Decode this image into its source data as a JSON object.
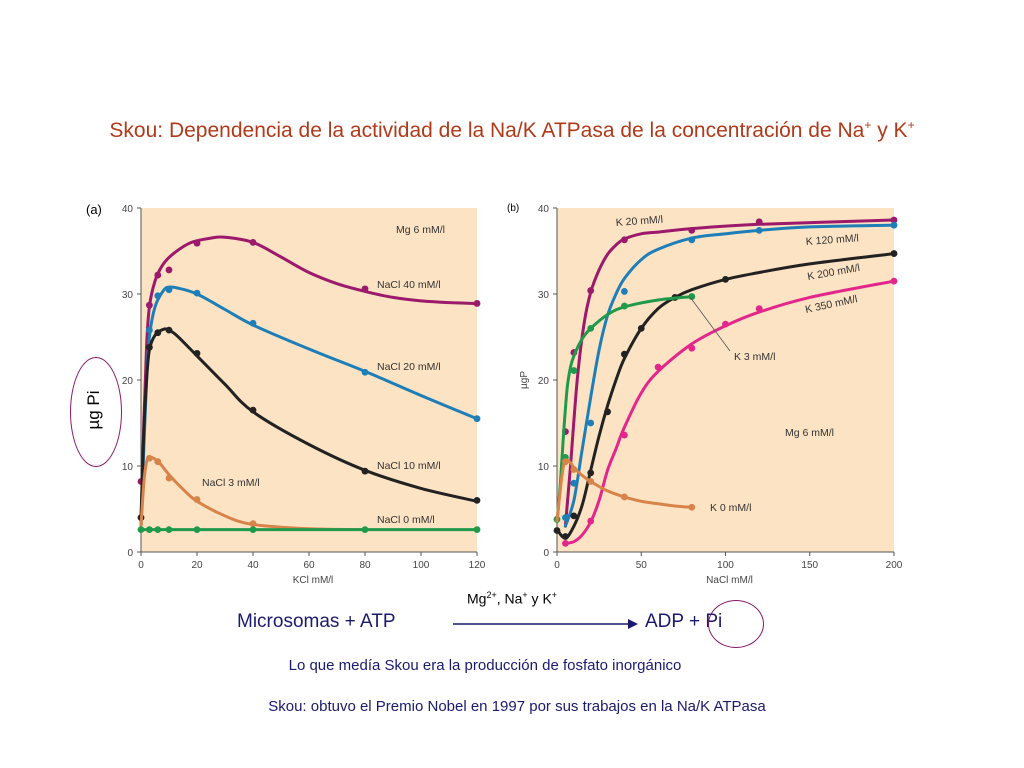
{
  "title": {
    "main": "Skou: Dependencia de la actividad de la Na/K ATPasa de la concentración de Na",
    "sup1": "+",
    "mid": " y K",
    "sup2": "+"
  },
  "panel_a_label": "(a)",
  "panel_b_label": "(b)",
  "ylabel_a": "µg Pi",
  "reaction": {
    "conditions_prefix": "Mg",
    "conditions_sup1": "2+",
    "conditions_mid": ", Na",
    "conditions_sup2": "+",
    "conditions_suffix": " y K",
    "conditions_sup3": "+",
    "left": "Microsomas + ATP",
    "right": "ADP + Pi"
  },
  "note1": "Lo que medía Skou era la producción de fosfato inorgánico",
  "note2": "Skou: obtuvo el Premio Nobel en 1997 por sus trabajos en la Na/K ATPasa",
  "colors": {
    "background": "#fce3c4",
    "title": "#b03a1a",
    "body_text": "#1a1a6e",
    "purple": "#9c1a6b",
    "blue": "#1e7fb8",
    "black": "#222222",
    "orange": "#d8834a",
    "green": "#1f9a4a",
    "pink": "#e3268c"
  },
  "chart_data": [
    {
      "type": "line",
      "panel": "(a)",
      "xlabel": "KCl mM/l",
      "ylabel": "",
      "xlim": [
        0,
        120
      ],
      "ylim": [
        0,
        40
      ],
      "xticks": [
        0,
        20,
        40,
        60,
        80,
        100,
        120
      ],
      "yticks": [
        0,
        10,
        20,
        30,
        40
      ],
      "annotation": "Mg 6 mM/l",
      "series": [
        {
          "name": "NaCl 40 mM/l",
          "color": "#9c1a6b",
          "x": [
            0,
            3,
            6,
            10,
            20,
            40,
            80,
            120
          ],
          "y": [
            8.2,
            28.7,
            32.2,
            32.8,
            35.9,
            36,
            30.6,
            28.9
          ],
          "curve_x": [
            0,
            1,
            2,
            3,
            5,
            8,
            12,
            18,
            25,
            30,
            40,
            50,
            60,
            70,
            80,
            90,
            100,
            110,
            120
          ],
          "curve_y": [
            3,
            15,
            24,
            28.5,
            31.5,
            33.5,
            34.8,
            36,
            36.5,
            36.6,
            36,
            34.3,
            32.5,
            31.2,
            30.3,
            29.6,
            29.2,
            29,
            28.9
          ]
        },
        {
          "name": "NaCl 20 mM/l",
          "color": "#1e7fb8",
          "x": [
            3,
            6,
            10,
            20,
            40,
            80,
            120
          ],
          "y": [
            25.8,
            29.8,
            30.5,
            30.1,
            26.6,
            20.9,
            15.5
          ],
          "curve_x": [
            0,
            1,
            2,
            3,
            5,
            8,
            10,
            13,
            20,
            30,
            40,
            60,
            80,
            100,
            120
          ],
          "curve_y": [
            3,
            12,
            20,
            25,
            28.5,
            30.4,
            30.8,
            30.7,
            30,
            28.2,
            26.4,
            23.6,
            21,
            18.2,
            15.5
          ]
        },
        {
          "name": "NaCl 10 mM/l",
          "color": "#222222",
          "x": [
            0,
            3,
            6,
            10,
            20,
            40,
            80,
            120
          ],
          "y": [
            4,
            23.8,
            25.5,
            25.8,
            23.1,
            16.5,
            9.4,
            6
          ],
          "curve_x": [
            0,
            1,
            2,
            3,
            5,
            8,
            10,
            13,
            20,
            30,
            40,
            60,
            80,
            100,
            120
          ],
          "curve_y": [
            4,
            14,
            20,
            23.5,
            25.2,
            25.9,
            25.8,
            25.1,
            22.8,
            19.5,
            16.3,
            12.5,
            9.5,
            7.4,
            5.9
          ]
        },
        {
          "name": "NaCl 3 mM/l",
          "color": "#d8834a",
          "x": [
            3,
            6,
            10,
            20,
            40
          ],
          "y": [
            10.9,
            10.5,
            8.6,
            6.1,
            3.3
          ],
          "curve_x": [
            0,
            1,
            2,
            3,
            5,
            7,
            10,
            15,
            20,
            30,
            40,
            60,
            80
          ],
          "curve_y": [
            3,
            8,
            10.5,
            11,
            10.8,
            10.2,
            9,
            7.3,
            5.9,
            4.2,
            3.2,
            2.7,
            2.6
          ]
        },
        {
          "name": "NaCl 0 mM/l",
          "color": "#1f9a4a",
          "x": [
            0,
            3,
            6,
            10,
            20,
            40,
            80,
            120
          ],
          "y": [
            2.6,
            2.6,
            2.6,
            2.6,
            2.6,
            2.6,
            2.6,
            2.6
          ],
          "curve_x": [
            0,
            120
          ],
          "curve_y": [
            2.6,
            2.6
          ]
        }
      ]
    },
    {
      "type": "line",
      "panel": "(b)",
      "xlabel": "NaCl mM/l",
      "ylabel": "µgP",
      "xlim": [
        0,
        200
      ],
      "ylim": [
        0,
        40
      ],
      "xticks": [
        0,
        50,
        100,
        150,
        200
      ],
      "yticks": [
        0,
        10,
        20,
        30,
        40
      ],
      "annotation": "Mg 6 mM/l",
      "series": [
        {
          "name": "K 20 mM/l",
          "color": "#9c1a6b",
          "x": [
            5,
            10,
            20,
            40,
            80,
            120,
            200
          ],
          "y": [
            14,
            23.2,
            30.4,
            36.3,
            37.4,
            38.4,
            38.6
          ],
          "curve_x": [
            5,
            8,
            12,
            16,
            20,
            25,
            30,
            35,
            40,
            50,
            60,
            80,
            120,
            200
          ],
          "curve_y": [
            3,
            10,
            20,
            26.5,
            30.2,
            32.8,
            34.6,
            35.7,
            36.4,
            37,
            37.2,
            37.6,
            38.1,
            38.6
          ]
        },
        {
          "name": "K 120 mM/l",
          "color": "#1e7fb8",
          "x": [
            5,
            10,
            20,
            40,
            80,
            120,
            200
          ],
          "y": [
            4,
            8,
            15,
            30.3,
            36.3,
            37.4,
            38
          ],
          "curve_x": [
            5,
            10,
            15,
            20,
            25,
            30,
            35,
            40,
            50,
            60,
            80,
            100,
            120,
            150,
            200
          ],
          "curve_y": [
            3,
            6,
            12,
            18,
            23.5,
            27.5,
            30,
            31.8,
            34,
            35.2,
            36.5,
            37,
            37.4,
            37.8,
            38
          ]
        },
        {
          "name": "K 200 mM/l",
          "color": "#222222",
          "x": [
            0,
            5,
            10,
            20,
            30,
            40,
            50,
            70,
            100,
            200
          ],
          "y": [
            2.5,
            1.8,
            4.2,
            9.2,
            16.3,
            23,
            26,
            29.6,
            31.7,
            34.7
          ],
          "curve_x": [
            0,
            5,
            10,
            15,
            20,
            25,
            30,
            35,
            40,
            50,
            60,
            70,
            80,
            100,
            120,
            150,
            200
          ],
          "curve_y": [
            2.6,
            1.6,
            3,
            5.5,
            9.5,
            13.5,
            17,
            20,
            22.5,
            26,
            28.3,
            29.6,
            30.5,
            31.7,
            32.5,
            33.5,
            34.7
          ]
        },
        {
          "name": "K 350 mM/l",
          "color": "#e3268c",
          "x": [
            5,
            20,
            40,
            60,
            80,
            100,
            120,
            200
          ],
          "y": [
            1,
            3.6,
            13.6,
            21.5,
            23.7,
            26.5,
            28.3,
            31.5
          ],
          "curve_x": [
            5,
            10,
            15,
            20,
            25,
            30,
            35,
            40,
            50,
            60,
            80,
            100,
            120,
            150,
            200
          ],
          "curve_y": [
            1,
            1.2,
            2,
            3.5,
            6,
            9.5,
            12,
            14.5,
            18.5,
            21,
            24.2,
            26.3,
            27.9,
            29.6,
            31.5
          ]
        },
        {
          "name": "K 3 mM/l",
          "color": "#1f9a4a",
          "x": [
            0,
            5,
            10,
            20,
            40,
            80
          ],
          "y": [
            3.8,
            11,
            21.1,
            26,
            28.6,
            29.7
          ],
          "curve_x": [
            0,
            2,
            4,
            6,
            8,
            10,
            15,
            20,
            30,
            40,
            60,
            80
          ],
          "curve_y": [
            3.5,
            8,
            14,
            19,
            21.5,
            22.8,
            24.8,
            26,
            27.6,
            28.5,
            29.3,
            29.7
          ]
        },
        {
          "name": "K 0 mM/l",
          "color": "#d8834a",
          "x": [
            5,
            10,
            20,
            40,
            80
          ],
          "y": [
            10.5,
            9.6,
            8.2,
            6.4,
            5.2
          ],
          "curve_x": [
            0,
            3,
            5,
            8,
            10,
            15,
            20,
            30,
            40,
            50,
            60,
            70,
            80
          ],
          "curve_y": [
            3.6,
            9,
            10.6,
            10.4,
            9.8,
            8.9,
            8.2,
            7.1,
            6.4,
            5.9,
            5.6,
            5.35,
            5.2
          ]
        }
      ]
    }
  ]
}
